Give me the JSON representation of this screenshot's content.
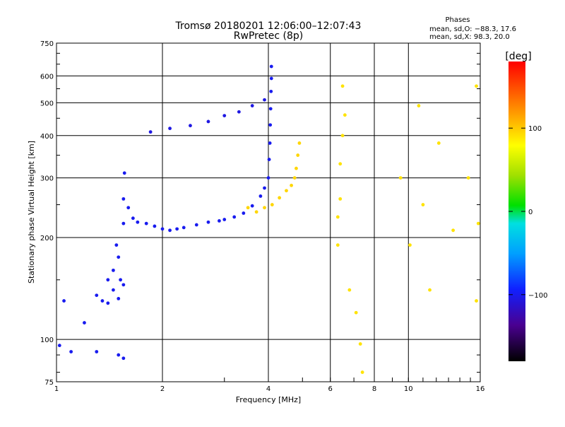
{
  "chart_data": {
    "type": "scatter",
    "title": "Tromsø 20180201 12:06:00–12:07:43",
    "subtitle": "RwPretec (8p)",
    "xlabel": "Frequency [MHz]",
    "ylabel": "Stationary phase Virtual Height [km]",
    "x_scale": "log",
    "y_scale": "log",
    "xlim": [
      1,
      16
    ],
    "ylim": [
      75,
      750
    ],
    "x_ticks": [
      1,
      2,
      4,
      6,
      8,
      10,
      16
    ],
    "x_tick_labels": [
      "1",
      "2",
      "4",
      "6",
      "8",
      "10",
      "16"
    ],
    "y_ticks": [
      75,
      100,
      200,
      300,
      400,
      500,
      600,
      750
    ],
    "y_tick_labels": [
      "75",
      "100",
      "200",
      "300",
      "400",
      "500",
      "600",
      "750"
    ],
    "grid": true,
    "phase_info": {
      "heading": "Phases",
      "line_o": "mean, sd,O: −88.3, 17.6",
      "line_x": "mean, sd,X:  98.3, 20.0"
    },
    "colorbar": {
      "label": "[deg]",
      "range": [
        -180,
        180
      ],
      "ticks": [
        100,
        0,
        -100
      ],
      "tick_labels": [
        "100",
        "0",
        "−100"
      ]
    },
    "traces": [
      {
        "points": [
          [
            1.05,
            130
          ],
          [
            1.2,
            112
          ],
          [
            1.3,
            135
          ],
          [
            1.35,
            130
          ],
          [
            1.4,
            128
          ],
          [
            1.45,
            140
          ],
          [
            1.45,
            160
          ],
          [
            1.5,
            175
          ],
          [
            1.52,
            150
          ],
          [
            1.55,
            145
          ],
          [
            1.5,
            132
          ],
          [
            1.4,
            150
          ],
          [
            1.48,
            190
          ],
          [
            1.55,
            220
          ],
          [
            1.55,
            260
          ],
          [
            1.56,
            310
          ],
          [
            1.6,
            245
          ],
          [
            1.65,
            228
          ],
          [
            1.7,
            222
          ],
          [
            1.8,
            220
          ],
          [
            1.9,
            216
          ],
          [
            2.0,
            212
          ],
          [
            2.1,
            210
          ],
          [
            2.2,
            212
          ],
          [
            2.3,
            214
          ],
          [
            2.5,
            218
          ],
          [
            2.7,
            222
          ],
          [
            2.9,
            224
          ],
          [
            3.0,
            226
          ],
          [
            3.2,
            230
          ],
          [
            3.4,
            236
          ],
          [
            3.6,
            248
          ],
          [
            3.8,
            265
          ],
          [
            3.9,
            280
          ],
          [
            4.0,
            300
          ],
          [
            4.02,
            340
          ],
          [
            4.04,
            380
          ],
          [
            4.05,
            430
          ],
          [
            4.06,
            480
          ],
          [
            4.07,
            540
          ],
          [
            4.08,
            590
          ],
          [
            4.08,
            640
          ],
          [
            1.02,
            96
          ],
          [
            1.1,
            92
          ],
          [
            1.3,
            92
          ],
          [
            1.5,
            90
          ],
          [
            1.55,
            88
          ]
        ],
        "phase": -100
      },
      {
        "points": [
          [
            1.85,
            410
          ],
          [
            2.1,
            420
          ],
          [
            2.4,
            428
          ],
          [
            2.7,
            440
          ],
          [
            3.0,
            458
          ],
          [
            3.3,
            470
          ],
          [
            3.6,
            490
          ],
          [
            3.9,
            510
          ]
        ],
        "phase": -105
      },
      {
        "points": [
          [
            3.5,
            245
          ],
          [
            3.7,
            238
          ],
          [
            3.9,
            245
          ],
          [
            4.1,
            250
          ],
          [
            4.3,
            262
          ],
          [
            4.5,
            275
          ],
          [
            4.65,
            285
          ],
          [
            4.75,
            300
          ],
          [
            4.8,
            320
          ],
          [
            4.85,
            350
          ],
          [
            4.9,
            380
          ]
        ],
        "phase": 95
      },
      {
        "points": [
          [
            6.3,
            190
          ],
          [
            6.3,
            230
          ],
          [
            6.4,
            260
          ],
          [
            6.4,
            330
          ],
          [
            6.5,
            400
          ],
          [
            6.6,
            460
          ],
          [
            6.8,
            140
          ],
          [
            7.1,
            120
          ],
          [
            7.3,
            97
          ],
          [
            7.4,
            80
          ],
          [
            9.5,
            300
          ],
          [
            10.1,
            190
          ],
          [
            10.7,
            490
          ],
          [
            11,
            250
          ],
          [
            12.2,
            380
          ],
          [
            13.4,
            210
          ],
          [
            14.8,
            300
          ],
          [
            15.6,
            560
          ],
          [
            15.6,
            130
          ],
          [
            15.8,
            220
          ],
          [
            11.5,
            140
          ],
          [
            6.5,
            560
          ]
        ],
        "phase": 90
      }
    ]
  }
}
